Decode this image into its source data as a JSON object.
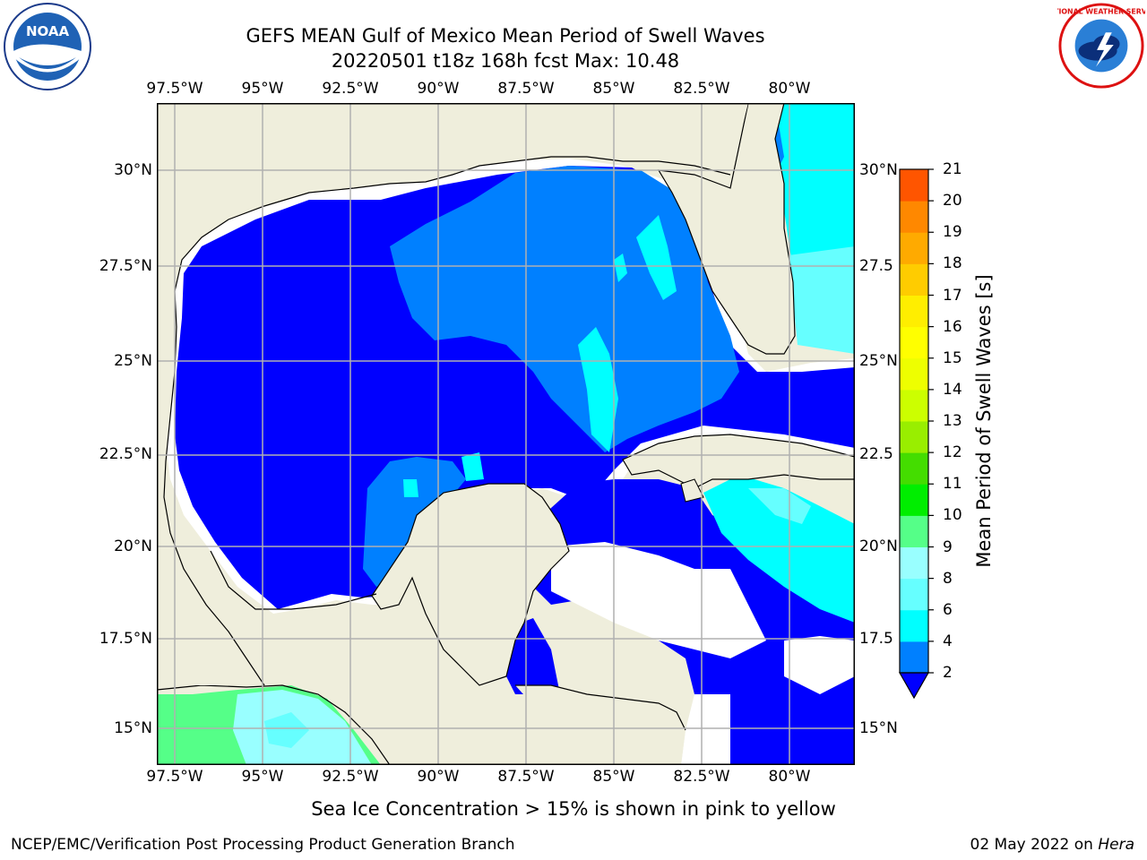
{
  "title": {
    "line1": "GEFS MEAN Gulf of Mexico Mean Period of Swell Waves",
    "line2": "20220501 t18z 168h fcst   Max: 10.48"
  },
  "logos": {
    "left": {
      "icon": "noaa-logo",
      "text": "NOAA"
    },
    "right": {
      "icon": "nws-logo",
      "text": "NATIONAL WEATHER SERVICE"
    }
  },
  "map": {
    "lon_labels": [
      "97.5°W",
      "95°W",
      "92.5°W",
      "90°W",
      "87.5°W",
      "85°W",
      "82.5°W",
      "80°W"
    ],
    "lat_labels_left": [
      "30°N",
      "27.5°N",
      "25°N",
      "22.5°N",
      "20°N",
      "17.5°N",
      "15°N"
    ],
    "lat_labels_right": [
      "30°N",
      "27.5",
      "25°N",
      "22.5",
      "20°N",
      "17.5",
      "15°N"
    ],
    "lon_range": [
      -98,
      -78.2
    ],
    "lat_range": [
      14.1,
      31.9
    ],
    "colors": {
      "land": "#efeedc",
      "ocean_2_4": "#0000ff",
      "ocean_4_6": "#0080ff",
      "ocean_6_8": "#00ffff",
      "ocean_8_9": "#99ffff",
      "ocean_9_10": "#55ff88",
      "missing": "#ffffff"
    }
  },
  "colorbar": {
    "label": "Mean Period of Swell Waves [s]",
    "ticks": [
      "2",
      "4",
      "6",
      "8",
      "9",
      "10",
      "11",
      "12",
      "13",
      "14",
      "15",
      "16",
      "17",
      "18",
      "19",
      "20",
      "21"
    ],
    "colors": [
      "#0080ff",
      "#00ffff",
      "#66ffff",
      "#99ffff",
      "#55ff88",
      "#00ee00",
      "#44dd00",
      "#99ee00",
      "#ccff00",
      "#eeff00",
      "#ffff00",
      "#ffee00",
      "#ffcc00",
      "#ffaa00",
      "#ff8800",
      "#ff5500",
      "#ff2200",
      "#ff0000"
    ],
    "extend_color": "#0000ff"
  },
  "note": "Sea Ice Concentration > 15% is shown in pink to yellow",
  "footer": {
    "left": "NCEP/EMC/Verification Post Processing Product Generation Branch",
    "date": "02 May 2022 on ",
    "machine": "Hera"
  }
}
